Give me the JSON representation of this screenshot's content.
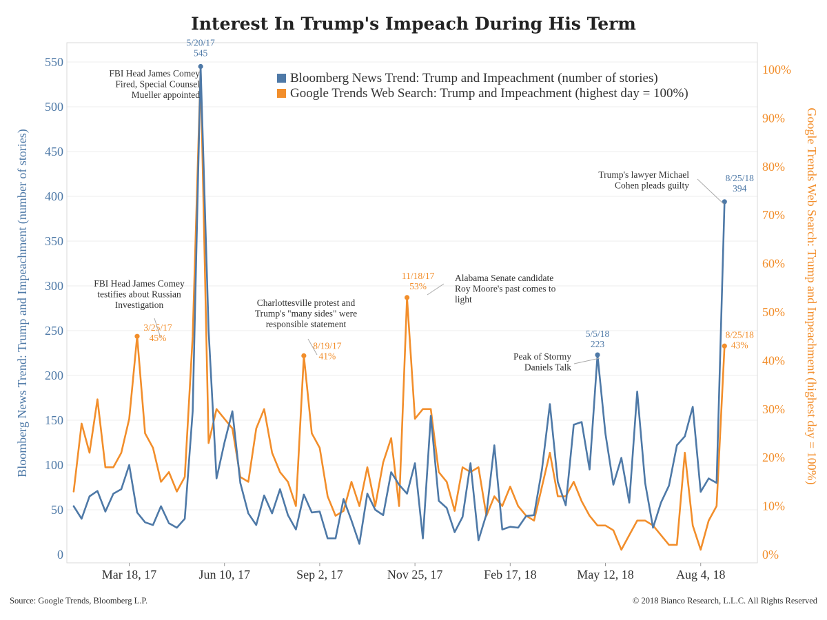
{
  "chart_data": {
    "type": "line",
    "title": "Interest In Trump's Impeach During His Term",
    "ylabel_left": "Bloomberg News Trend: Trump and Impeachment (number of stories)",
    "ylabel_right": "Google Trends Web Search: Trump and Impeachment (highest day = 100%)",
    "ylim_left": [
      0,
      570
    ],
    "ylim_right": [
      0,
      1.06
    ],
    "yticks_left": [
      0,
      50,
      100,
      150,
      200,
      250,
      300,
      350,
      400,
      450,
      500,
      550
    ],
    "yticks_right": [
      "0%",
      "10%",
      "20%",
      "30%",
      "40%",
      "50%",
      "60%",
      "70%",
      "80%",
      "90%",
      "100%"
    ],
    "xlim": [
      "2017-01-22",
      "2018-09-23"
    ],
    "xticks": [
      {
        "date": "2017-03-18",
        "label": "Mar 18, 17"
      },
      {
        "date": "2017-06-10",
        "label": "Jun 10, 17"
      },
      {
        "date": "2017-09-02",
        "label": "Sep 2, 17"
      },
      {
        "date": "2017-11-25",
        "label": "Nov 25, 17"
      },
      {
        "date": "2018-02-17",
        "label": "Feb 17, 18"
      },
      {
        "date": "2018-05-12",
        "label": "May 12, 18"
      },
      {
        "date": "2018-08-04",
        "label": "Aug 4, 18"
      }
    ],
    "x_start": "2017-01-28",
    "x_step_days": 7,
    "grid": "horizontal",
    "legend_position": "top-right",
    "series": [
      {
        "name": "Bloomberg News Trend: Trump and Impeachment (number of stories)",
        "axis": "left",
        "color": "#4e79a7",
        "values": [
          54,
          40,
          65,
          71,
          48,
          68,
          73,
          100,
          47,
          36,
          33,
          54,
          35,
          30,
          40,
          160,
          545,
          250,
          85,
          125,
          160,
          80,
          46,
          33,
          66,
          46,
          73,
          44,
          28,
          67,
          47,
          48,
          18,
          18,
          62,
          38,
          12,
          68,
          50,
          44,
          92,
          78,
          68,
          102,
          18,
          155,
          60,
          52,
          25,
          42,
          102,
          16,
          45,
          122,
          28,
          31,
          30,
          43,
          44,
          95,
          168,
          81,
          55,
          145,
          148,
          95,
          223,
          135,
          78,
          108,
          58,
          182,
          80,
          30,
          58,
          77,
          122,
          132,
          165,
          70,
          85,
          80,
          394
        ]
      },
      {
        "name": "Google Trends Web Search: Trump and Impeachment (highest day = 100%)",
        "axis": "right",
        "color": "#f28e2b",
        "values": [
          0.13,
          0.27,
          0.21,
          0.32,
          0.18,
          0.18,
          0.21,
          0.28,
          0.45,
          0.25,
          0.22,
          0.15,
          0.17,
          0.13,
          0.16,
          0.45,
          1.0,
          0.23,
          0.3,
          0.28,
          0.26,
          0.16,
          0.15,
          0.26,
          0.3,
          0.21,
          0.17,
          0.15,
          0.1,
          0.41,
          0.25,
          0.22,
          0.12,
          0.08,
          0.09,
          0.15,
          0.1,
          0.18,
          0.1,
          0.19,
          0.24,
          0.1,
          0.53,
          0.28,
          0.3,
          0.3,
          0.17,
          0.15,
          0.09,
          0.18,
          0.17,
          0.18,
          0.08,
          0.12,
          0.1,
          0.14,
          0.1,
          0.08,
          0.07,
          0.14,
          0.21,
          0.12,
          0.12,
          0.15,
          0.11,
          0.08,
          0.06,
          0.06,
          0.05,
          0.01,
          0.04,
          0.07,
          0.07,
          0.06,
          0.04,
          0.02,
          0.02,
          0.21,
          0.06,
          0.01,
          0.07,
          0.1,
          0.43
        ]
      }
    ],
    "point_labels": [
      {
        "series": 0,
        "index": 16,
        "date": "5/20/17",
        "value": "545"
      },
      {
        "series": 0,
        "index": 66,
        "date": "5/5/18",
        "value": "223"
      },
      {
        "series": 0,
        "index": 82,
        "date": "8/25/18",
        "value": "394"
      },
      {
        "series": 1,
        "index": 8,
        "date": "3/25/17",
        "value": "45%"
      },
      {
        "series": 1,
        "index": 29,
        "date": "8/19/17",
        "value": "41%"
      },
      {
        "series": 1,
        "index": 42,
        "date": "11/18/17",
        "value": "53%"
      },
      {
        "series": 1,
        "index": 82,
        "date": "8/25/18",
        "value": "43%"
      }
    ],
    "annotations": [
      {
        "lines": [
          "FBI Head James Comey",
          "Fired, Special Counsel",
          "Mueller appointed"
        ]
      },
      {
        "lines": [
          "FBI Head James Comey",
          "testifies about Russian",
          "Investigation"
        ]
      },
      {
        "lines": [
          "Charlottesville protest and",
          "Trump's \"many sides\" were",
          "responsible statement"
        ]
      },
      {
        "lines": [
          "Alabama Senate candidate",
          "Roy Moore's past comes to",
          "light"
        ]
      },
      {
        "lines": [
          "Peak of Stormy",
          "Daniels Talk"
        ]
      },
      {
        "lines": [
          "Trump's lawyer Michael",
          "Cohen pleads guilty"
        ]
      }
    ]
  },
  "footer": {
    "source": "Source: Google Trends, Bloomberg L.P.",
    "copyright": "© 2018 Bianco Research, L.L.C. All Rights Reserved"
  }
}
